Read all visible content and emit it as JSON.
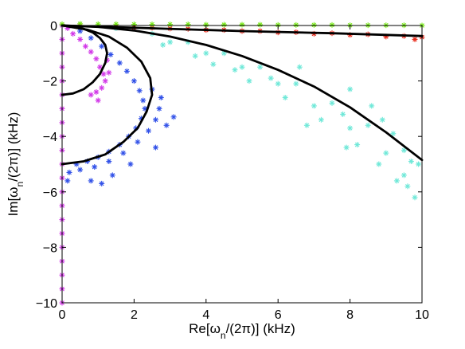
{
  "chart_data": {
    "type": "scatter",
    "title": "",
    "xlabel": "Re[ω_n/(2π)] (kHz)",
    "ylabel": "Im[ω_n/(2π)] (kHz)",
    "xlabel_parts": {
      "pre": "Re[ω",
      "sub": "n",
      "post": "/(2π)] (kHz)"
    },
    "ylabel_parts": {
      "pre": "Im[ω",
      "sub": "n",
      "post": "/(2π)] (kHz)"
    },
    "xlim": [
      0,
      10
    ],
    "ylim": [
      -10,
      0
    ],
    "x_ticks": [
      0,
      2,
      4,
      6,
      8,
      10
    ],
    "y_ticks": [
      0,
      -2,
      -4,
      -6,
      -8,
      -10
    ],
    "x_tick_labels": [
      "0",
      "2",
      "4",
      "6",
      "8",
      "10"
    ],
    "y_tick_labels": [
      "0",
      "−2",
      "−4",
      "−6",
      "−8",
      "−10"
    ],
    "grid": false,
    "legend": "none",
    "marker": "*",
    "scatter_series": [
      {
        "color": "#d238e8",
        "points": [
          [
            0.0,
            0.0
          ],
          [
            0.0,
            -0.5
          ],
          [
            0.0,
            -1.0
          ],
          [
            0.0,
            -1.5
          ],
          [
            0.0,
            -2.0
          ],
          [
            0.0,
            -2.5
          ],
          [
            0.0,
            -3.0
          ],
          [
            0.0,
            -3.5
          ],
          [
            0.0,
            -4.0
          ],
          [
            0.0,
            -4.5
          ],
          [
            0.0,
            -5.0
          ],
          [
            0.0,
            -5.5
          ],
          [
            0.0,
            -6.0
          ],
          [
            0.0,
            -6.5
          ],
          [
            0.0,
            -7.0
          ],
          [
            0.0,
            -7.5
          ],
          [
            0.0,
            -8.0
          ],
          [
            0.0,
            -8.5
          ],
          [
            0.0,
            -9.0
          ],
          [
            0.0,
            -9.5
          ],
          [
            0.0,
            -10.0
          ],
          [
            0.15,
            -0.1
          ],
          [
            0.3,
            -0.3
          ],
          [
            0.5,
            -0.5
          ],
          [
            0.65,
            -0.75
          ],
          [
            0.8,
            -0.95
          ],
          [
            0.95,
            -1.2
          ],
          [
            1.05,
            -1.5
          ],
          [
            1.15,
            -1.75
          ],
          [
            1.2,
            -2.0
          ],
          [
            1.1,
            -2.25
          ],
          [
            0.95,
            -2.4
          ],
          [
            0.8,
            -2.5
          ],
          [
            1.0,
            -2.7
          ],
          [
            1.3,
            -1.7
          ],
          [
            1.25,
            -1.25
          ]
        ]
      },
      {
        "color": "#3050e8",
        "points": [
          [
            0.5,
            -0.2
          ],
          [
            0.8,
            -0.45
          ],
          [
            1.1,
            -0.75
          ],
          [
            1.35,
            -1.05
          ],
          [
            1.6,
            -1.35
          ],
          [
            1.8,
            -1.65
          ],
          [
            2.0,
            -2.0
          ],
          [
            2.15,
            -2.35
          ],
          [
            2.25,
            -2.7
          ],
          [
            2.3,
            -3.0
          ],
          [
            2.2,
            -3.35
          ],
          [
            2.05,
            -3.7
          ],
          [
            1.85,
            -4.0
          ],
          [
            1.6,
            -4.3
          ],
          [
            1.3,
            -4.55
          ],
          [
            1.0,
            -4.75
          ],
          [
            0.7,
            -4.9
          ],
          [
            0.4,
            -5.0
          ],
          [
            0.2,
            -5.3
          ],
          [
            0.15,
            -5.6
          ],
          [
            0.5,
            -5.2
          ],
          [
            0.9,
            -5.1
          ],
          [
            1.3,
            -4.9
          ],
          [
            1.7,
            -4.6
          ],
          [
            2.1,
            -4.2
          ],
          [
            2.4,
            -3.8
          ],
          [
            2.6,
            -3.4
          ],
          [
            2.7,
            -3.0
          ],
          [
            2.75,
            -2.6
          ],
          [
            2.5,
            -2.3
          ],
          [
            3.1,
            -3.3
          ],
          [
            2.9,
            -3.6
          ],
          [
            2.6,
            -4.4
          ],
          [
            1.9,
            -5.0
          ],
          [
            1.4,
            -5.4
          ],
          [
            1.1,
            -5.7
          ],
          [
            0.8,
            -5.6
          ]
        ]
      },
      {
        "color": "#6fe8d8",
        "points": [
          [
            1.5,
            -0.1
          ],
          [
            2.5,
            -0.3
          ],
          [
            3.5,
            -0.6
          ],
          [
            4.5,
            -1.0
          ],
          [
            5.5,
            -1.5
          ],
          [
            6.5,
            -2.1
          ],
          [
            7.5,
            -2.8
          ],
          [
            8.5,
            -3.6
          ],
          [
            9.5,
            -4.5
          ],
          [
            9.9,
            -5.0
          ],
          [
            3.0,
            -0.6
          ],
          [
            4.0,
            -1.0
          ],
          [
            5.0,
            -1.5
          ],
          [
            6.0,
            -2.1
          ],
          [
            7.0,
            -2.9
          ],
          [
            8.0,
            -3.7
          ],
          [
            9.0,
            -4.6
          ],
          [
            9.5,
            -5.4
          ],
          [
            9.8,
            -6.2
          ],
          [
            9.6,
            -5.8
          ],
          [
            4.2,
            -1.4
          ],
          [
            5.2,
            -2.0
          ],
          [
            6.2,
            -2.6
          ],
          [
            7.2,
            -3.4
          ],
          [
            8.2,
            -4.3
          ],
          [
            8.8,
            -5.0
          ],
          [
            9.3,
            -5.6
          ],
          [
            6.6,
            -1.5
          ],
          [
            5.8,
            -1.9
          ],
          [
            7.8,
            -3.2
          ],
          [
            8.6,
            -2.9
          ],
          [
            9.2,
            -3.9
          ],
          [
            7.9,
            -4.4
          ],
          [
            6.8,
            -3.6
          ],
          [
            4.8,
            -1.6
          ],
          [
            3.7,
            -1.1
          ],
          [
            2.8,
            -0.7
          ],
          [
            8.9,
            -3.4
          ],
          [
            9.7,
            -4.9
          ],
          [
            8.0,
            -2.3
          ]
        ]
      },
      {
        "color": "#e82818",
        "points": [
          [
            0.5,
            0.0
          ],
          [
            1.5,
            -0.05
          ],
          [
            2.5,
            -0.08
          ],
          [
            3.5,
            -0.12
          ],
          [
            4.5,
            -0.16
          ],
          [
            5.5,
            -0.2
          ],
          [
            6.5,
            -0.24
          ],
          [
            7.5,
            -0.28
          ],
          [
            8.5,
            -0.32
          ],
          [
            9.5,
            -0.38
          ],
          [
            10.0,
            -0.42
          ],
          [
            9.0,
            -0.4
          ],
          [
            9.8,
            -0.5
          ],
          [
            8.0,
            -0.34
          ],
          [
            7.0,
            -0.3
          ],
          [
            6.0,
            -0.25
          ],
          [
            5.0,
            -0.2
          ],
          [
            4.0,
            -0.16
          ],
          [
            3.0,
            -0.11
          ],
          [
            2.0,
            -0.07
          ]
        ]
      },
      {
        "color": "#78e818",
        "points": [
          [
            0.0,
            0.05
          ],
          [
            1.0,
            0.05
          ],
          [
            2.0,
            0.04
          ],
          [
            3.0,
            0.04
          ],
          [
            4.0,
            0.03
          ],
          [
            5.0,
            0.03
          ],
          [
            6.0,
            0.02
          ],
          [
            7.0,
            0.02
          ],
          [
            8.0,
            0.01
          ],
          [
            9.0,
            0.01
          ],
          [
            10.0,
            0.0
          ],
          [
            0.5,
            0.06
          ],
          [
            1.5,
            0.05
          ],
          [
            2.5,
            0.04
          ],
          [
            3.5,
            0.04
          ],
          [
            4.5,
            0.03
          ],
          [
            5.5,
            0.03
          ],
          [
            6.5,
            0.02
          ],
          [
            7.5,
            0.02
          ],
          [
            8.5,
            0.01
          ],
          [
            9.5,
            0.01
          ]
        ]
      }
    ],
    "curves": [
      {
        "color": "#000000",
        "points": [
          [
            0.0,
            -2.5
          ],
          [
            0.3,
            -2.45
          ],
          [
            0.6,
            -2.3
          ],
          [
            0.85,
            -2.05
          ],
          [
            1.05,
            -1.75
          ],
          [
            1.2,
            -1.35
          ],
          [
            1.25,
            -1.0
          ],
          [
            1.2,
            -0.7
          ],
          [
            1.05,
            -0.45
          ],
          [
            0.85,
            -0.25
          ],
          [
            0.6,
            -0.12
          ],
          [
            0.3,
            -0.03
          ],
          [
            0.0,
            0.0
          ]
        ]
      },
      {
        "color": "#000000",
        "points": [
          [
            0.0,
            -5.0
          ],
          [
            0.6,
            -4.9
          ],
          [
            1.2,
            -4.65
          ],
          [
            1.7,
            -4.2
          ],
          [
            2.1,
            -3.7
          ],
          [
            2.35,
            -3.1
          ],
          [
            2.5,
            -2.5
          ],
          [
            2.45,
            -1.9
          ],
          [
            2.2,
            -1.3
          ],
          [
            1.8,
            -0.8
          ],
          [
            1.3,
            -0.4
          ],
          [
            0.7,
            -0.15
          ],
          [
            0.0,
            0.0
          ]
        ]
      },
      {
        "color": "#000000",
        "points": [
          [
            0.0,
            0.0
          ],
          [
            1.0,
            -0.05
          ],
          [
            2.0,
            -0.18
          ],
          [
            3.0,
            -0.4
          ],
          [
            4.0,
            -0.7
          ],
          [
            5.0,
            -1.1
          ],
          [
            6.0,
            -1.6
          ],
          [
            7.0,
            -2.2
          ],
          [
            8.0,
            -2.95
          ],
          [
            9.0,
            -3.85
          ],
          [
            10.0,
            -4.85
          ]
        ]
      },
      {
        "color": "#000000",
        "points": [
          [
            0.0,
            0.0
          ],
          [
            2.5,
            -0.1
          ],
          [
            5.0,
            -0.2
          ],
          [
            7.5,
            -0.28
          ],
          [
            10.0,
            -0.38
          ]
        ]
      }
    ]
  }
}
